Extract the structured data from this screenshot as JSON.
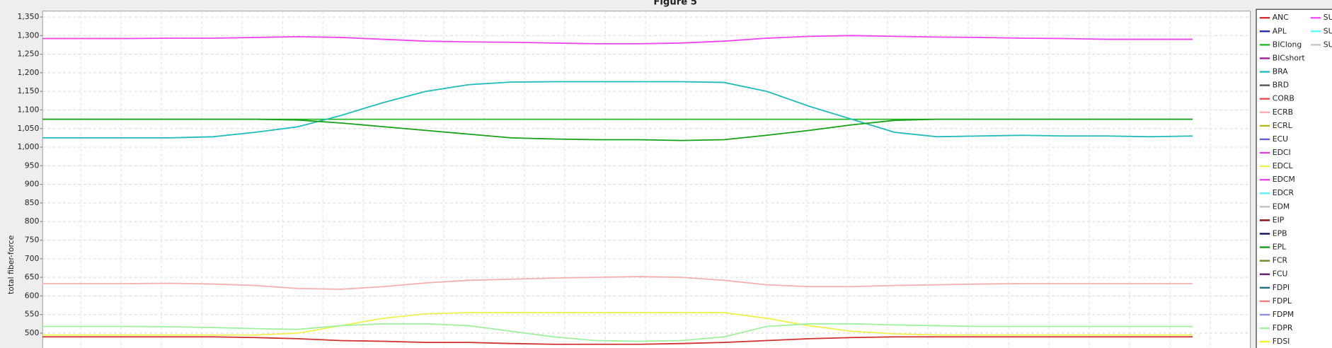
{
  "chart_data": {
    "type": "line",
    "title": "Figure 5",
    "y_label": "total fiber-force",
    "ylim": [
      460,
      1366
    ],
    "yticks": [
      500,
      550,
      600,
      650,
      700,
      750,
      800,
      850,
      900,
      950,
      {
        "value": 1000,
        "label": "1,000"
      },
      {
        "value": 1050,
        "label": "1,050"
      },
      {
        "value": 1100,
        "label": "1,100"
      },
      {
        "value": 1150,
        "label": "1,150"
      },
      {
        "value": 1200,
        "label": "1,200"
      },
      {
        "value": 1250,
        "label": "1,250"
      },
      {
        "value": 1300,
        "label": "1,300"
      },
      {
        "value": 1350,
        "label": "1,350"
      }
    ],
    "grid": true,
    "series": [
      {
        "name": "ANC",
        "color": "#d03030",
        "values": [
          490,
          490,
          490,
          490,
          490,
          488,
          485,
          480,
          478,
          475,
          475,
          472,
          470,
          470,
          470,
          472,
          475,
          480,
          485,
          488,
          490,
          490,
          490,
          490,
          490,
          490,
          490,
          490
        ]
      },
      {
        "name": "APL",
        "color": "#2030a0"
      },
      {
        "name": "BIClong",
        "color": "#22bb22",
        "values": [
          1075,
          1075,
          1075,
          1075,
          1075,
          1075,
          1075,
          1075,
          1075,
          1075,
          1075,
          1075,
          1075,
          1075,
          1075,
          1075,
          1075,
          1075,
          1075,
          1075,
          1075,
          1075,
          1075,
          1075,
          1075,
          1075,
          1075,
          1075
        ]
      },
      {
        "name": "BICshort",
        "color": "#a020a0"
      },
      {
        "name": "BRA",
        "color": "#22bbbb",
        "values": [
          1025,
          1025,
          1025,
          1025,
          1028,
          1040,
          1055,
          1085,
          1120,
          1150,
          1168,
          1175,
          1176,
          1176,
          1176,
          1176,
          1174,
          1150,
          1110,
          1075,
          1040,
          1028,
          1030,
          1032,
          1030,
          1030,
          1028,
          1030
        ]
      },
      {
        "name": "BRD",
        "color": "#555555"
      },
      {
        "name": "CORB",
        "color": "#e05050"
      },
      {
        "name": "ECRB",
        "color": "#f4b0b0",
        "values": [
          633,
          633,
          633,
          634,
          632,
          628,
          620,
          618,
          625,
          635,
          642,
          645,
          648,
          650,
          652,
          650,
          642,
          630,
          625,
          625,
          628,
          630,
          632,
          633,
          633,
          633,
          633,
          633
        ]
      },
      {
        "name": "ECRL",
        "color": "#b8b820"
      },
      {
        "name": "ECU",
        "color": "#6060d0"
      },
      {
        "name": "EDCI",
        "color": "#e040e0"
      },
      {
        "name": "EDCL",
        "color": "#f0f050",
        "values": [
          495,
          495,
          495,
          495,
          495,
          495,
          500,
          520,
          540,
          552,
          555,
          555,
          555,
          555,
          555,
          555,
          555,
          540,
          520,
          505,
          498,
          495,
          495,
          495,
          495,
          495,
          495,
          495
        ]
      },
      {
        "name": "EDCM",
        "color": "#ee44ee",
        "values": [
          1292,
          1292,
          1292,
          1293,
          1293,
          1295,
          1297,
          1295,
          1290,
          1285,
          1283,
          1282,
          1280,
          1278,
          1278,
          1280,
          1285,
          1293,
          1298,
          1300,
          1298,
          1296,
          1295,
          1293,
          1292,
          1290,
          1290,
          1290
        ]
      },
      {
        "name": "EDCR",
        "color": "#60f0f0"
      },
      {
        "name": "EDM",
        "color": "#c0c0c0"
      },
      {
        "name": "EIP",
        "color": "#801010"
      },
      {
        "name": "EPB",
        "color": "#101060"
      },
      {
        "name": "EPL",
        "color": "#18a018",
        "values": [
          1075,
          1075,
          1075,
          1075,
          1075,
          1075,
          1073,
          1065,
          1055,
          1045,
          1035,
          1025,
          1022,
          1020,
          1020,
          1018,
          1020,
          1032,
          1045,
          1060,
          1072,
          1075,
          1075,
          1075,
          1075,
          1075,
          1075,
          1075
        ]
      },
      {
        "name": "FCR",
        "color": "#6a8a20"
      },
      {
        "name": "FCU",
        "color": "#602070"
      },
      {
        "name": "FDPI",
        "color": "#207080"
      },
      {
        "name": "FDPL",
        "color": "#f08080"
      },
      {
        "name": "FDPM",
        "color": "#9090e0"
      },
      {
        "name": "FDPR",
        "color": "#a0f0a0",
        "values": [
          518,
          518,
          518,
          517,
          515,
          512,
          510,
          520,
          525,
          525,
          520,
          505,
          490,
          480,
          478,
          480,
          490,
          518,
          525,
          525,
          522,
          520,
          518,
          518,
          518,
          518,
          518,
          518
        ]
      },
      {
        "name": "FDSI",
        "color": "#f0f030"
      },
      {
        "name": "SU",
        "color": "#ff50ff"
      },
      {
        "name": "SU",
        "color": "#60ffff"
      },
      {
        "name": "SU",
        "color": "#c8c8c8"
      }
    ]
  }
}
